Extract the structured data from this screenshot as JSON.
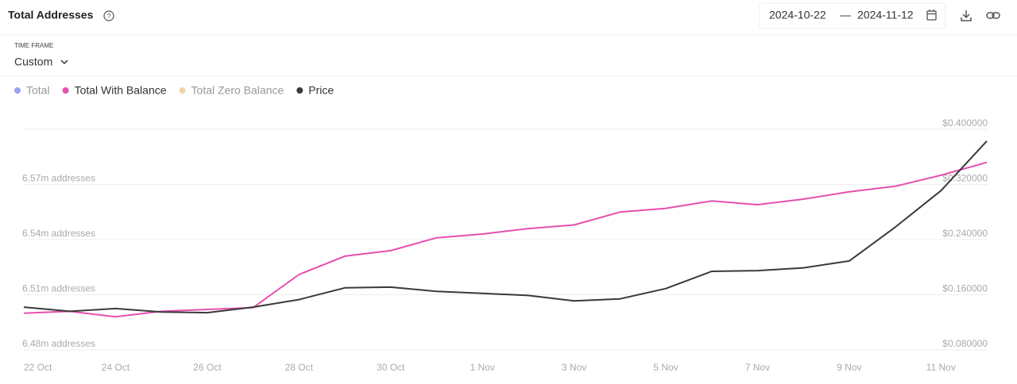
{
  "header": {
    "title": "Total Addresses",
    "date_from": "2024-10-22",
    "date_separator": "—",
    "date_to": "2024-11-12"
  },
  "controls": {
    "time_frame_label": "TIME FRAME",
    "time_frame_value": "Custom"
  },
  "chart_data": {
    "type": "line",
    "categories": [
      "22 Oct",
      null,
      "24 Oct",
      null,
      "26 Oct",
      null,
      "28 Oct",
      null,
      "30 Oct",
      null,
      "1 Nov",
      null,
      "3 Nov",
      null,
      "5 Nov",
      null,
      "7 Nov",
      null,
      "9 Nov",
      null,
      "11 Nov",
      null
    ],
    "series": [
      {
        "name": "Total",
        "color": "#7b8cf0",
        "hidden": true
      },
      {
        "name": "Total With Balance",
        "color": "#e64fb0",
        "values": [
          6500000,
          6501000,
          6498000,
          6501000,
          6502000,
          6503000,
          6521000,
          6531000,
          6534000,
          6541000,
          6543000,
          6546000,
          6548000,
          6555000,
          6557000,
          6561000,
          6559000,
          6562000,
          6566000,
          6569000,
          6575000,
          6582000
        ]
      },
      {
        "name": "Total Zero Balance",
        "color": "#f2c79b",
        "hidden": true
      },
      {
        "name": "Price",
        "color": "#3a3a3a",
        "axis": "y2",
        "values": [
          0.142,
          0.136,
          0.14,
          0.135,
          0.134,
          0.142,
          0.153,
          0.17,
          0.171,
          0.165,
          0.162,
          0.159,
          0.151,
          0.154,
          0.169,
          0.194,
          0.195,
          0.199,
          0.209,
          0.258,
          0.311,
          0.383
        ]
      }
    ],
    "ylim": [
      6480000,
      6600000
    ],
    "yticks": [
      {
        "value": 6480000,
        "label": "6.48m addresses"
      },
      {
        "value": 6510000,
        "label": "6.51m addresses"
      },
      {
        "value": 6540000,
        "label": "6.54m addresses"
      },
      {
        "value": 6570000,
        "label": "6.57m addresses"
      }
    ],
    "y2lim": [
      0.08,
      0.4
    ],
    "y2ticks": [
      {
        "value": 0.08,
        "label": "$0.080000"
      },
      {
        "value": 0.16,
        "label": "$0.160000"
      },
      {
        "value": 0.24,
        "label": "$0.240000"
      },
      {
        "value": 0.32,
        "label": "$0.320000"
      },
      {
        "value": 0.4,
        "label": "$0.400000"
      }
    ],
    "grid": true
  }
}
